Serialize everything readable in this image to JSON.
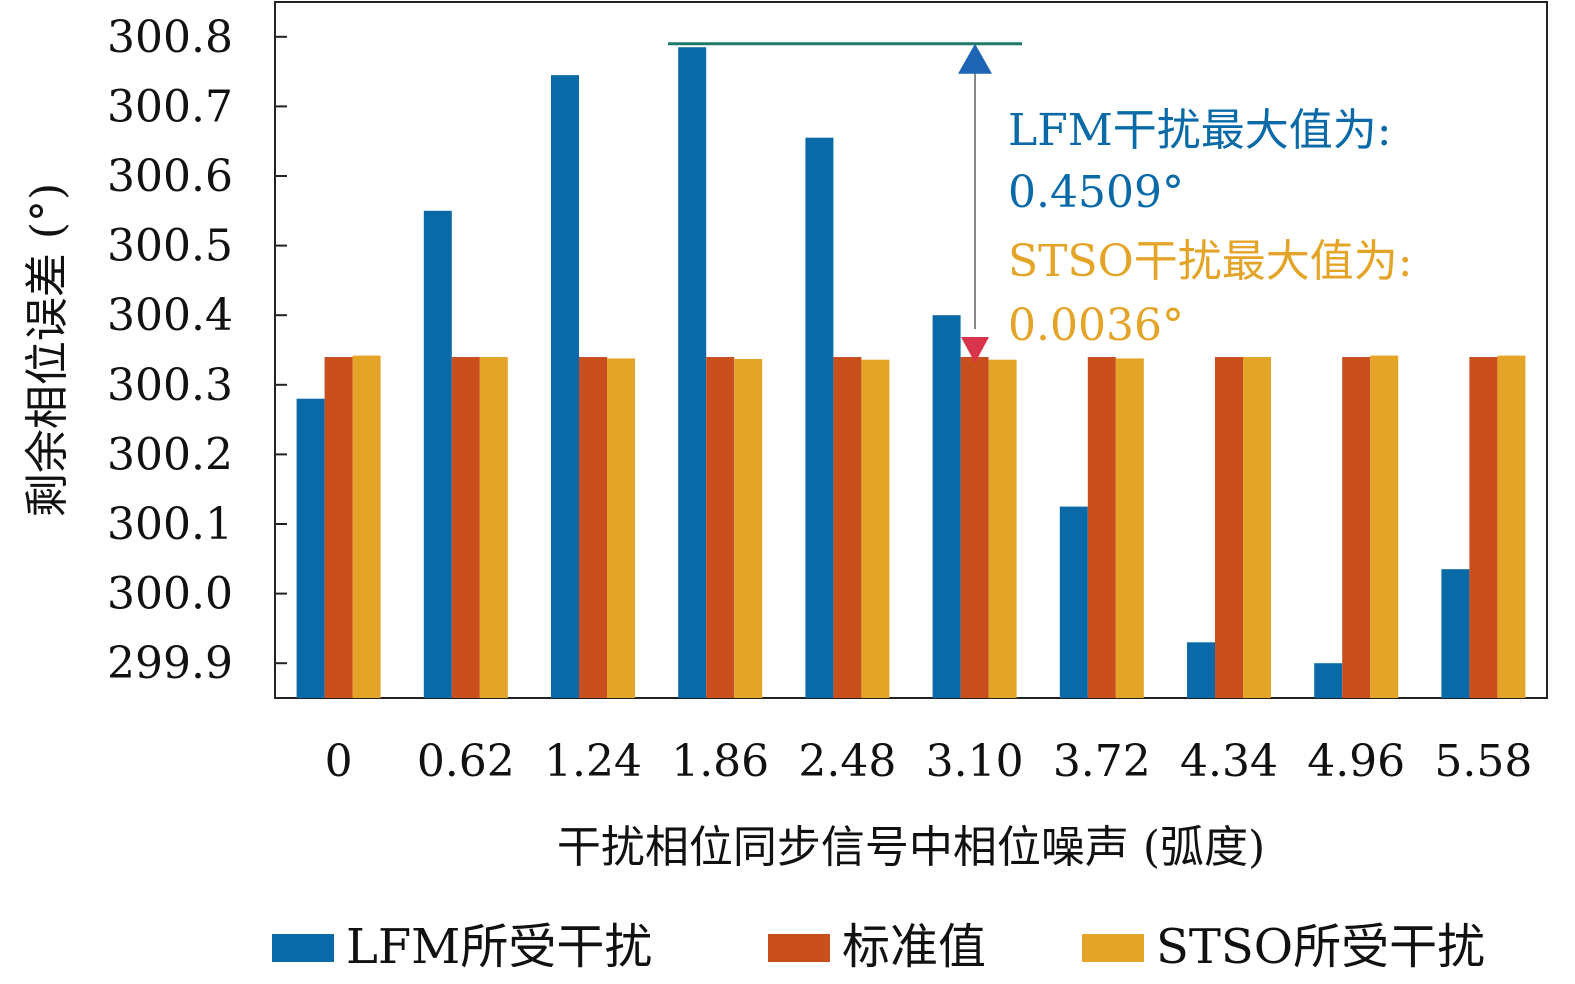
{
  "colors": {
    "lfm": "#0a6aa8",
    "standard": "#c94f1e",
    "stso": "#e3a428",
    "max_line": "#1f7a6a",
    "arrow_up": "#1e64b4",
    "arrow_down": "#d8344a",
    "arrow_shaft": "#888888"
  },
  "chart_data": {
    "type": "bar",
    "xlabel": "干扰相位同步信号中相位噪声 (弧度)",
    "ylabel": "剩余相位误差 (°)",
    "ylim": [
      299.85,
      300.85
    ],
    "yticks": [
      299.9,
      300.0,
      300.1,
      300.2,
      300.3,
      300.4,
      300.5,
      300.6,
      300.7,
      300.8
    ],
    "ytick_labels": [
      "299.9",
      "300.0",
      "300.1",
      "300.2",
      "300.3",
      "300.4",
      "300.5",
      "300.6",
      "300.7",
      "300.8"
    ],
    "categories": [
      "0",
      "0.62",
      "1.24",
      "1.86",
      "2.48",
      "3.10",
      "3.72",
      "4.34",
      "4.96",
      "5.58"
    ],
    "series": [
      {
        "name": "LFM所受干扰",
        "values": [
          300.28,
          300.55,
          300.745,
          300.785,
          300.655,
          300.4,
          300.125,
          299.93,
          299.9,
          300.035
        ]
      },
      {
        "name": "标准值",
        "values": [
          300.34,
          300.34,
          300.34,
          300.34,
          300.34,
          300.34,
          300.34,
          300.34,
          300.34,
          300.34
        ]
      },
      {
        "name": "STSO所受干扰",
        "values": [
          300.342,
          300.34,
          300.338,
          300.337,
          300.336,
          300.336,
          300.338,
          300.34,
          300.342,
          300.342
        ]
      }
    ],
    "legend_position": "bottom",
    "grid": false,
    "annotations": {
      "lfm_label": "LFM干扰最大值为:",
      "lfm_value": "0.4509°",
      "stso_label": "STSO干扰最大值为:",
      "stso_value": "0.0036°",
      "max_line_value": 300.79,
      "arrow_top": 300.79,
      "arrow_bottom": 300.34
    }
  }
}
